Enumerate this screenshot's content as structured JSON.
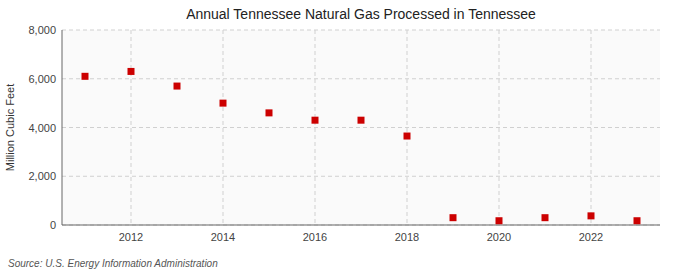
{
  "chart_data": {
    "type": "scatter",
    "title": "Annual Tennessee Natural Gas Processed in Tennessee",
    "ylabel": "Million Cubic Feet",
    "source": "Source: U.S. Energy Information Administration",
    "x": [
      2011,
      2012,
      2013,
      2014,
      2015,
      2016,
      2017,
      2018,
      2019,
      2020,
      2021,
      2022,
      2023
    ],
    "values": [
      6100,
      6300,
      5700,
      5000,
      4600,
      4300,
      4300,
      3650,
      300,
      175,
      300,
      375,
      175
    ],
    "color": "#cc0000",
    "marker": "square",
    "xlim": [
      2010.5,
      2023.5
    ],
    "ylim": [
      0,
      8000
    ],
    "xticks": [
      2012,
      2014,
      2016,
      2018,
      2020,
      2022
    ],
    "yticks": [
      0,
      {
        "value": 2000,
        "label": "2,000"
      },
      {
        "value": 4000,
        "label": "4,000"
      },
      {
        "value": 6000,
        "label": "6,000"
      },
      {
        "value": 8000,
        "label": "8,000"
      }
    ],
    "grid": true
  }
}
